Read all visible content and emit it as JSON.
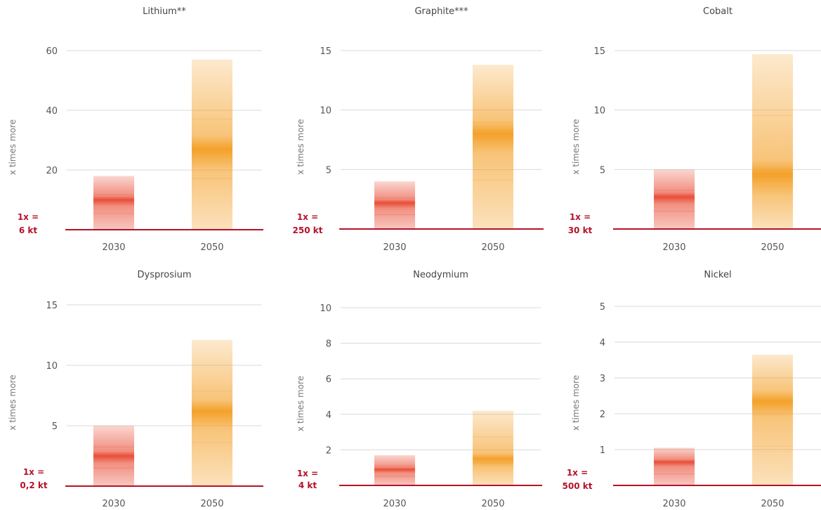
{
  "colors": {
    "baseline": "#b5122a",
    "grid": "#d9d9d9",
    "bar_2030": "#e8452c",
    "bar_2050": "#f39c1f",
    "text": "#444444"
  },
  "chart_data": [
    {
      "type": "bar",
      "title": "Lithium**",
      "ylabel": "x times more",
      "categories": [
        "2030",
        "2050"
      ],
      "ylim": [
        0,
        60
      ],
      "yticks": [
        "20",
        "40",
        "60"
      ],
      "base_label": [
        "1x =",
        "6 kt"
      ],
      "ranges": [
        {
          "category": "2030",
          "low": 0,
          "high": 18,
          "mid": 10,
          "color": "#e8452c"
        },
        {
          "category": "2050",
          "low": 0,
          "high": 57,
          "mid": 27,
          "color": "#f39c1f"
        }
      ]
    },
    {
      "type": "bar",
      "title": "Graphite***",
      "ylabel": "x times more",
      "categories": [
        "2030",
        "2050"
      ],
      "ylim": [
        0,
        15
      ],
      "yticks": [
        "5",
        "10",
        "15"
      ],
      "base_label": [
        "1x =",
        "250 kt"
      ],
      "ranges": [
        {
          "category": "2030",
          "low": 0,
          "high": 4,
          "mid": 2.2,
          "color": "#e8452c"
        },
        {
          "category": "2050",
          "low": 0,
          "high": 13.8,
          "mid": 8,
          "color": "#f39c1f"
        }
      ]
    },
    {
      "type": "bar",
      "title": "Cobalt",
      "ylabel": "x times more",
      "categories": [
        "2030",
        "2050"
      ],
      "ylim": [
        0,
        15
      ],
      "yticks": [
        "5",
        "10",
        "15"
      ],
      "base_label": [
        "1x =",
        "30 kt"
      ],
      "ranges": [
        {
          "category": "2030",
          "low": 0,
          "high": 5,
          "mid": 2.7,
          "color": "#e8452c"
        },
        {
          "category": "2050",
          "low": 0,
          "high": 14.7,
          "mid": 4.6,
          "color": "#f39c1f"
        }
      ]
    },
    {
      "type": "bar",
      "title": "Dysprosium",
      "ylabel": "x times more",
      "categories": [
        "2030",
        "2050"
      ],
      "ylim": [
        0,
        15
      ],
      "yticks": [
        "5",
        "10",
        "15"
      ],
      "base_label": [
        "1x =",
        "0,2 kt"
      ],
      "ranges": [
        {
          "category": "2030",
          "low": 0,
          "high": 5,
          "mid": 2.5,
          "color": "#e8452c"
        },
        {
          "category": "2050",
          "low": 0,
          "high": 12.1,
          "mid": 6.2,
          "color": "#f39c1f"
        }
      ]
    },
    {
      "type": "bar",
      "title": "Neodymium",
      "ylabel": "x times more",
      "categories": [
        "2030",
        "2050"
      ],
      "ylim": [
        0,
        10
      ],
      "yticks": [
        "2",
        "4",
        "6",
        "8",
        "10"
      ],
      "base_label": [
        "1x =",
        "4 kt"
      ],
      "ranges": [
        {
          "category": "2030",
          "low": 0,
          "high": 1.7,
          "mid": 0.9,
          "color": "#e8452c"
        },
        {
          "category": "2050",
          "low": 0,
          "high": 4.2,
          "mid": 1.5,
          "color": "#f39c1f"
        }
      ]
    },
    {
      "type": "bar",
      "title": "Nickel",
      "ylabel": "x times more",
      "categories": [
        "2030",
        "2050"
      ],
      "ylim": [
        0,
        5
      ],
      "yticks": [
        "1",
        "2",
        "3",
        "4",
        "5"
      ],
      "base_label": [
        "1x =",
        "500 kt"
      ],
      "ranges": [
        {
          "category": "2030",
          "low": 0,
          "high": 1.05,
          "mid": 0.65,
          "color": "#e8452c"
        },
        {
          "category": "2050",
          "low": 0,
          "high": 3.65,
          "mid": 2.35,
          "color": "#f39c1f"
        }
      ]
    }
  ]
}
